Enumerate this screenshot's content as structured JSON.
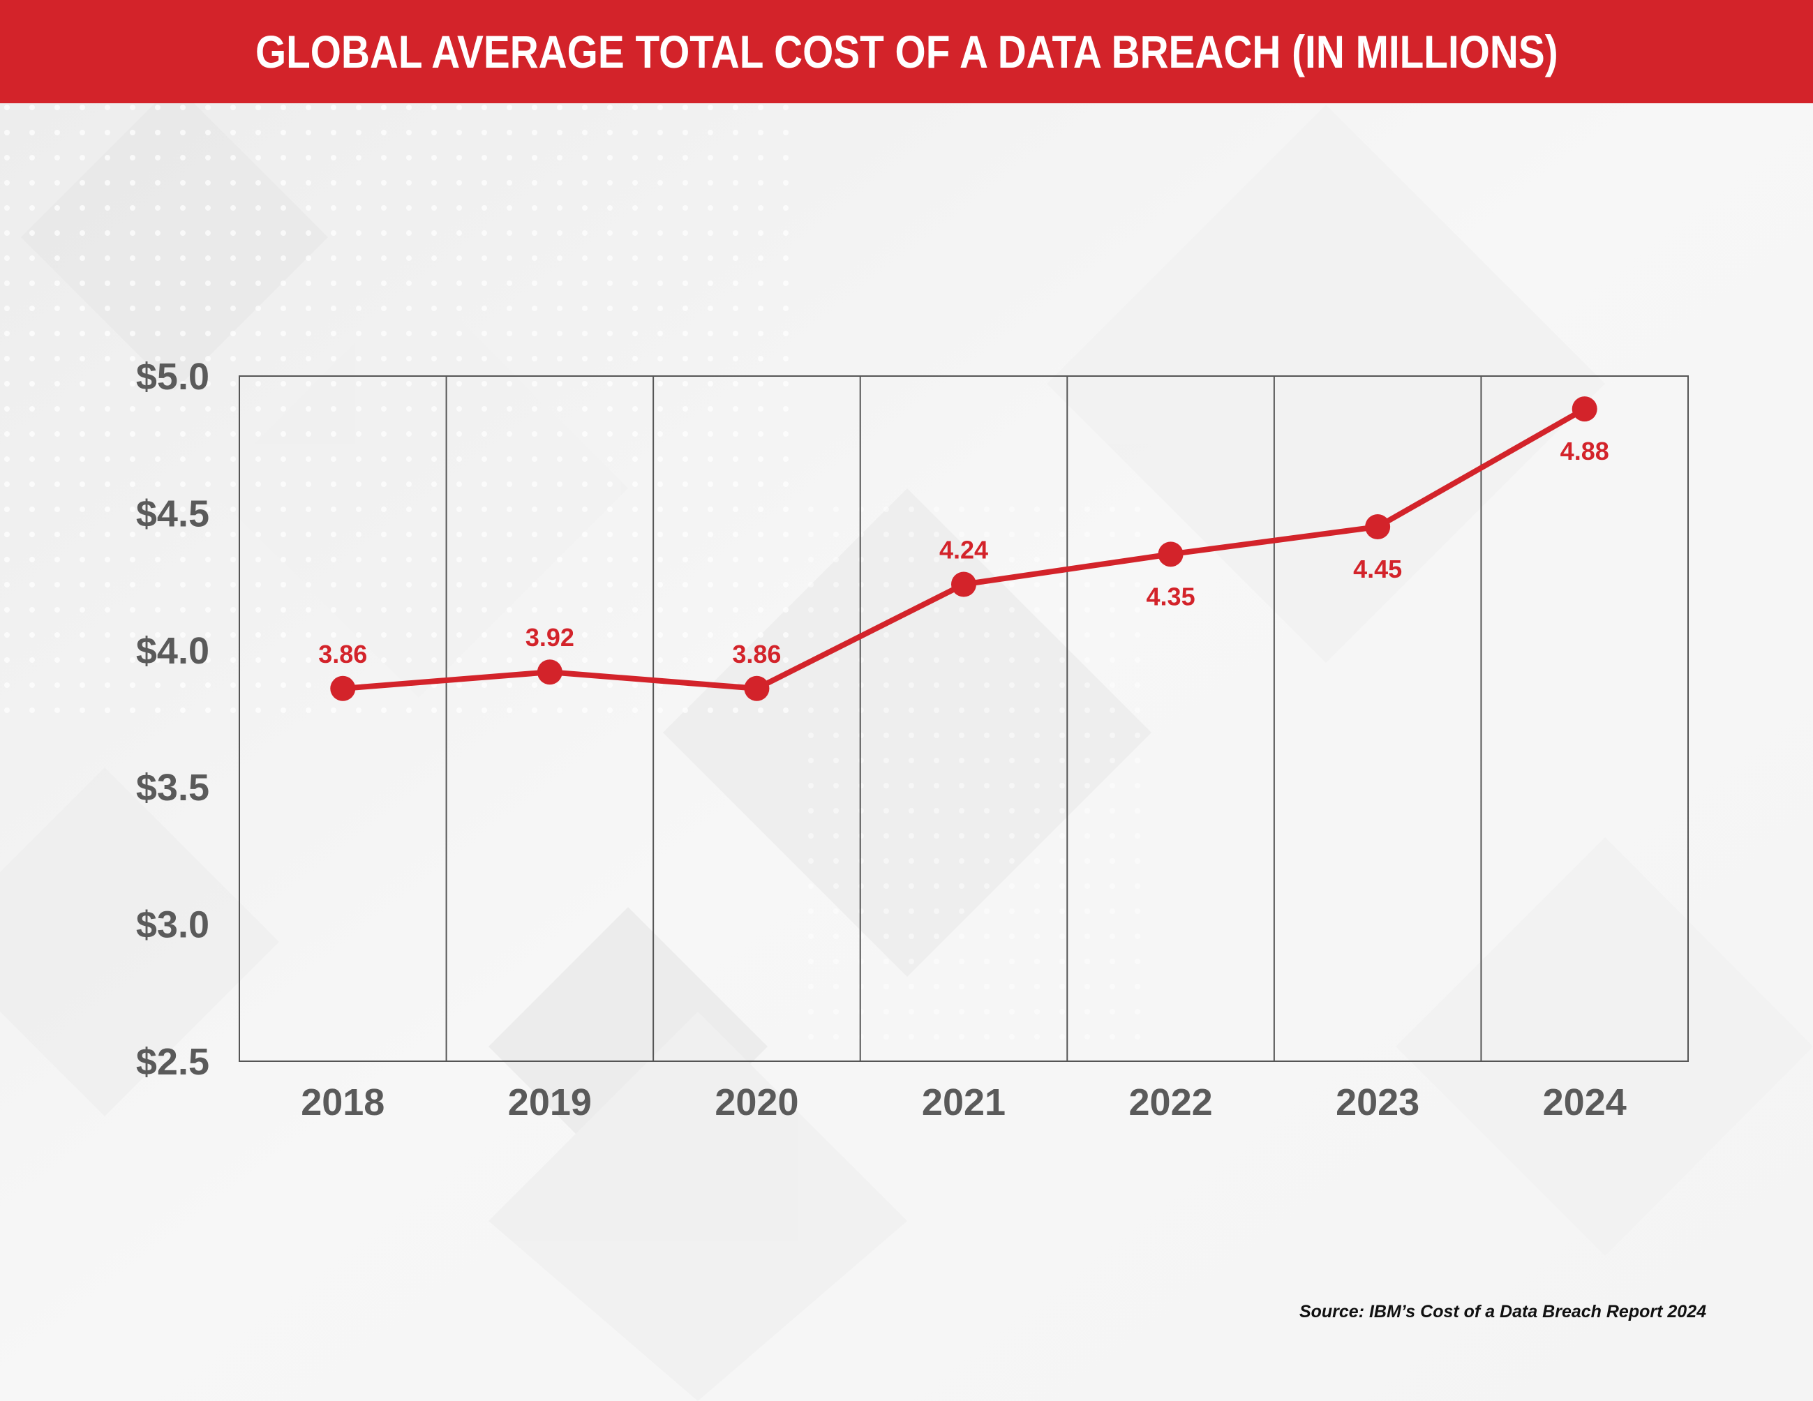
{
  "title": "GLOBAL AVERAGE TOTAL COST OF A DATA BREACH (IN MILLIONS)",
  "source": "Source: IBM’s Cost of a Data Breach Report 2024",
  "colors": {
    "title_bar": "#d3232a",
    "line": "#d3232a",
    "axis_text": "#5a5a5a",
    "grid": "#555555"
  },
  "chart_data": {
    "type": "line",
    "title": "GLOBAL AVERAGE TOTAL COST OF A DATA BREACH (IN MILLIONS)",
    "xlabel": "",
    "ylabel": "",
    "categories": [
      "2018",
      "2019",
      "2020",
      "2021",
      "2022",
      "2023",
      "2024"
    ],
    "series": [
      {
        "values": [
          3.86,
          3.92,
          3.86,
          4.24,
          4.35,
          4.45,
          4.88
        ],
        "data_labels": [
          "3.86",
          "3.92",
          "3.86",
          "4.24",
          "4.35",
          "4.45",
          "4.88"
        ],
        "label_placement": [
          "above",
          "above",
          "above",
          "above",
          "below",
          "below",
          "below"
        ]
      }
    ],
    "ylim": [
      2.5,
      5.0
    ],
    "yticks": [
      5.0,
      4.5,
      4.0,
      3.5,
      3.0,
      2.5
    ],
    "ytick_labels": [
      "$5.0",
      "$4.5",
      "$4.0",
      "$3.5",
      "$3.0",
      "$2.5"
    ],
    "grid": "vertical",
    "legend": "none"
  }
}
